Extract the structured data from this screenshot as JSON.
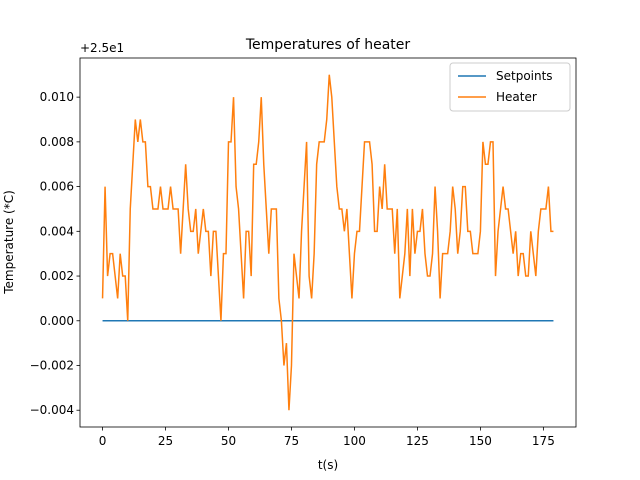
{
  "chart_data": {
    "type": "line",
    "title": "Temperatures of heater",
    "xlabel": "t(s)",
    "ylabel": "Temperature (*C)",
    "offset_label": "+2.5e1",
    "x": [
      0,
      1,
      2,
      3,
      4,
      5,
      6,
      7,
      8,
      9,
      10,
      11,
      12,
      13,
      14,
      15,
      16,
      17,
      18,
      19,
      20,
      21,
      22,
      23,
      24,
      25,
      26,
      27,
      28,
      29,
      30,
      31,
      32,
      33,
      34,
      35,
      36,
      37,
      38,
      39,
      40,
      41,
      42,
      43,
      44,
      45,
      46,
      47,
      48,
      49,
      50,
      51,
      52,
      53,
      54,
      55,
      56,
      57,
      58,
      59,
      60,
      61,
      62,
      63,
      64,
      65,
      66,
      67,
      68,
      69,
      70,
      71,
      72,
      73,
      74,
      75,
      76,
      77,
      78,
      79,
      80,
      81,
      82,
      83,
      84,
      85,
      86,
      87,
      88,
      89,
      90,
      91,
      92,
      93,
      94,
      95,
      96,
      97,
      98,
      99,
      100,
      101,
      102,
      103,
      104,
      105,
      106,
      107,
      108,
      109,
      110,
      111,
      112,
      113,
      114,
      115,
      116,
      117,
      118,
      119,
      120,
      121,
      122,
      123,
      124,
      125,
      126,
      127,
      128,
      129,
      130,
      131,
      132,
      133,
      134,
      135,
      136,
      137,
      138,
      139,
      140,
      141,
      142,
      143,
      144,
      145,
      146,
      147,
      148,
      149,
      150,
      151,
      152,
      153,
      154,
      155,
      156,
      157,
      158,
      159,
      160,
      161,
      162,
      163,
      164,
      165,
      166,
      167,
      168,
      169,
      170,
      171,
      172,
      173,
      174,
      175,
      176,
      177,
      178,
      179
    ],
    "series": [
      {
        "name": "Setpoints",
        "color": "#1f77b4",
        "values": [
          0,
          0,
          0,
          0,
          0,
          0,
          0,
          0,
          0,
          0,
          0,
          0,
          0,
          0,
          0,
          0,
          0,
          0,
          0,
          0,
          0,
          0,
          0,
          0,
          0,
          0,
          0,
          0,
          0,
          0,
          0,
          0,
          0,
          0,
          0,
          0,
          0,
          0,
          0,
          0,
          0,
          0,
          0,
          0,
          0,
          0,
          0,
          0,
          0,
          0,
          0,
          0,
          0,
          0,
          0,
          0,
          0,
          0,
          0,
          0,
          0,
          0,
          0,
          0,
          0,
          0,
          0,
          0,
          0,
          0,
          0,
          0,
          0,
          0,
          0,
          0,
          0,
          0,
          0,
          0,
          0,
          0,
          0,
          0,
          0,
          0,
          0,
          0,
          0,
          0,
          0,
          0,
          0,
          0,
          0,
          0,
          0,
          0,
          0,
          0,
          0,
          0,
          0,
          0,
          0,
          0,
          0,
          0,
          0,
          0,
          0,
          0,
          0,
          0,
          0,
          0,
          0,
          0,
          0,
          0,
          0,
          0,
          0,
          0,
          0,
          0,
          0,
          0,
          0,
          0,
          0,
          0,
          0,
          0,
          0,
          0,
          0,
          0,
          0,
          0,
          0,
          0,
          0,
          0,
          0,
          0,
          0,
          0,
          0,
          0,
          0,
          0,
          0,
          0,
          0,
          0,
          0,
          0,
          0,
          0,
          0,
          0,
          0,
          0,
          0,
          0,
          0,
          0,
          0,
          0,
          0,
          0,
          0,
          0,
          0,
          0,
          0,
          0,
          0,
          0
        ]
      },
      {
        "name": "Heater",
        "color": "#ff7f0e",
        "values": [
          0.001,
          0.006,
          0.002,
          0.003,
          0.003,
          0.002,
          0.001,
          0.003,
          0.002,
          0.002,
          0.0,
          0.005,
          0.007,
          0.009,
          0.008,
          0.009,
          0.008,
          0.008,
          0.006,
          0.006,
          0.005,
          0.005,
          0.005,
          0.006,
          0.005,
          0.005,
          0.005,
          0.006,
          0.005,
          0.005,
          0.005,
          0.003,
          0.005,
          0.007,
          0.005,
          0.004,
          0.004,
          0.005,
          0.003,
          0.004,
          0.005,
          0.004,
          0.004,
          0.002,
          0.004,
          0.004,
          0.002,
          0.0,
          0.003,
          0.003,
          0.008,
          0.008,
          0.01,
          0.006,
          0.005,
          0.003,
          0.001,
          0.004,
          0.004,
          0.002,
          0.007,
          0.007,
          0.008,
          0.01,
          0.007,
          0.005,
          0.003,
          0.005,
          0.005,
          0.005,
          0.001,
          0.0,
          -0.002,
          -0.001,
          -0.004,
          -0.002,
          0.003,
          0.002,
          0.001,
          0.004,
          0.006,
          0.008,
          0.002,
          0.001,
          0.003,
          0.007,
          0.008,
          0.008,
          0.008,
          0.009,
          0.011,
          0.01,
          0.008,
          0.006,
          0.005,
          0.005,
          0.004,
          0.005,
          0.003,
          0.001,
          0.003,
          0.004,
          0.004,
          0.006,
          0.008,
          0.008,
          0.008,
          0.007,
          0.004,
          0.004,
          0.006,
          0.005,
          0.007,
          0.005,
          0.005,
          0.005,
          0.003,
          0.005,
          0.001,
          0.002,
          0.003,
          0.005,
          0.002,
          0.005,
          0.003,
          0.004,
          0.004,
          0.005,
          0.003,
          0.002,
          0.002,
          0.003,
          0.006,
          0.004,
          0.001,
          0.003,
          0.003,
          0.003,
          0.004,
          0.006,
          0.005,
          0.003,
          0.004,
          0.006,
          0.006,
          0.004,
          0.004,
          0.003,
          0.003,
          0.003,
          0.004,
          0.008,
          0.007,
          0.007,
          0.008,
          0.008,
          0.002,
          0.004,
          0.005,
          0.006,
          0.005,
          0.005,
          0.004,
          0.003,
          0.004,
          0.002,
          0.003,
          0.003,
          0.002,
          0.002,
          0.004,
          0.003,
          0.002,
          0.004,
          0.005,
          0.005,
          0.005,
          0.006,
          0.004,
          0.004
        ]
      }
    ],
    "xlim": [
      -8.95,
      187.95
    ],
    "xticks": [
      0,
      25,
      50,
      75,
      100,
      125,
      150,
      175
    ],
    "ylim": [
      -0.00475,
      0.01175
    ],
    "yticks": [
      {
        "value": -0.004,
        "label": "−0.004"
      },
      {
        "value": -0.002,
        "label": "−0.002"
      },
      {
        "value": 0,
        "label": "0.000"
      },
      {
        "value": 0.002,
        "label": "0.002"
      },
      {
        "value": 0.004,
        "label": "0.004"
      },
      {
        "value": 0.006,
        "label": "0.006"
      },
      {
        "value": 0.008,
        "label": "0.008"
      },
      {
        "value": 0.01,
        "label": "0.010"
      }
    ],
    "legend": "upper right",
    "grid": false
  }
}
